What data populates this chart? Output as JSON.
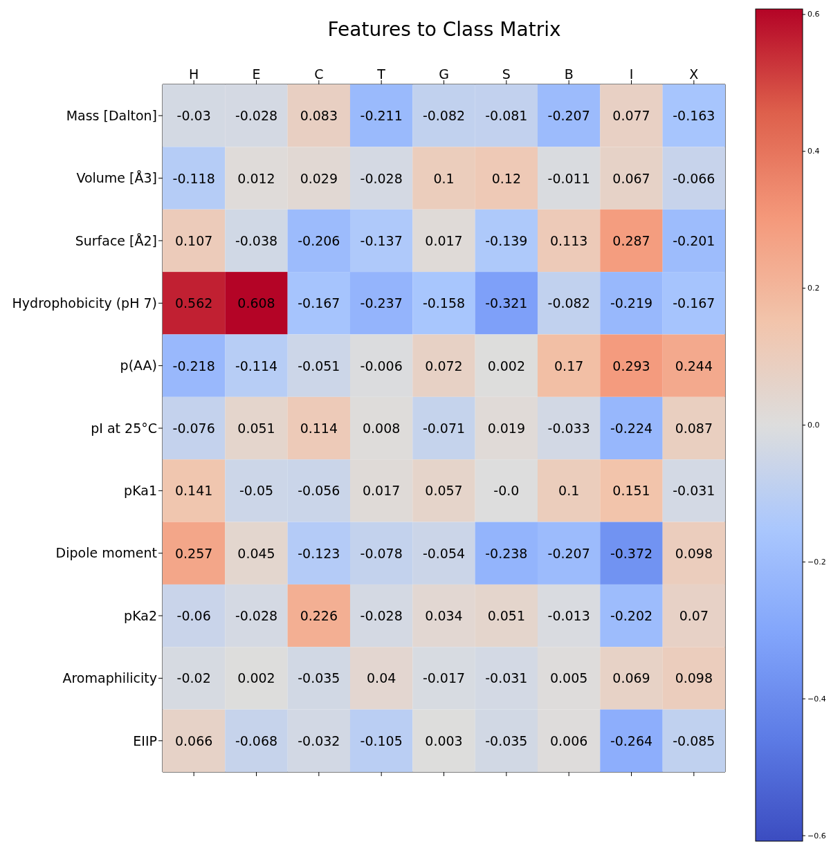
{
  "chart_data": {
    "type": "heatmap",
    "title": "Features to Class Matrix",
    "categories": [
      "H",
      "E",
      "C",
      "T",
      "G",
      "S",
      "B",
      "I",
      "X"
    ],
    "y_categories": [
      "Mass [Dalton]",
      "Volume [Å3]",
      "Surface [Å2]",
      "Hydrophobicity (pH 7)",
      "p(AA)",
      "pI at 25°C",
      "pKa1",
      "Dipole moment",
      "pKa2",
      "Aromaphilicity",
      "EIIP"
    ],
    "cells": [
      [
        -0.03,
        -0.028,
        0.083,
        -0.211,
        -0.082,
        -0.081,
        -0.207,
        0.077,
        -0.163
      ],
      [
        -0.118,
        0.012,
        0.029,
        -0.028,
        0.1,
        0.12,
        -0.011,
        0.067,
        -0.066
      ],
      [
        0.107,
        -0.038,
        -0.206,
        -0.137,
        0.017,
        -0.139,
        0.113,
        0.287,
        -0.201
      ],
      [
        0.562,
        0.608,
        -0.167,
        -0.237,
        -0.158,
        -0.321,
        -0.082,
        -0.219,
        -0.167
      ],
      [
        -0.218,
        -0.114,
        -0.051,
        -0.006,
        0.072,
        0.002,
        0.17,
        0.293,
        0.244
      ],
      [
        -0.076,
        0.051,
        0.114,
        0.008,
        -0.071,
        0.019,
        -0.033,
        -0.224,
        0.087
      ],
      [
        0.141,
        -0.05,
        -0.056,
        0.017,
        0.057,
        0,
        0.1,
        0.151,
        -0.031
      ],
      [
        0.257,
        0.045,
        -0.123,
        -0.078,
        -0.054,
        -0.238,
        -0.207,
        -0.372,
        0.098
      ],
      [
        -0.06,
        -0.028,
        0.226,
        -0.028,
        0.034,
        0.051,
        -0.013,
        -0.202,
        0.07
      ],
      [
        -0.02,
        0.002,
        -0.035,
        0.04,
        -0.017,
        -0.031,
        0.005,
        0.069,
        0.098
      ],
      [
        0.066,
        -0.068,
        -0.032,
        -0.105,
        0.003,
        -0.035,
        0.006,
        -0.264,
        -0.085
      ]
    ],
    "cell_labels": [
      [
        "-0.03",
        "-0.028",
        "0.083",
        "-0.211",
        "-0.082",
        "-0.081",
        "-0.207",
        "0.077",
        "-0.163"
      ],
      [
        "-0.118",
        "0.012",
        "0.029",
        "-0.028",
        "0.1",
        "0.12",
        "-0.011",
        "0.067",
        "-0.066"
      ],
      [
        "0.107",
        "-0.038",
        "-0.206",
        "-0.137",
        "0.017",
        "-0.139",
        "0.113",
        "0.287",
        "-0.201"
      ],
      [
        "0.562",
        "0.608",
        "-0.167",
        "-0.237",
        "-0.158",
        "-0.321",
        "-0.082",
        "-0.219",
        "-0.167"
      ],
      [
        "-0.218",
        "-0.114",
        "-0.051",
        "-0.006",
        "0.072",
        "0.002",
        "0.17",
        "0.293",
        "0.244"
      ],
      [
        "-0.076",
        "0.051",
        "0.114",
        "0.008",
        "-0.071",
        "0.019",
        "-0.033",
        "-0.224",
        "0.087"
      ],
      [
        "0.141",
        "-0.05",
        "-0.056",
        "0.017",
        "0.057",
        "-0.0",
        "0.1",
        "0.151",
        "-0.031"
      ],
      [
        "0.257",
        "0.045",
        "-0.123",
        "-0.078",
        "-0.054",
        "-0.238",
        "-0.207",
        "-0.372",
        "0.098"
      ],
      [
        "-0.06",
        "-0.028",
        "0.226",
        "-0.028",
        "0.034",
        "0.051",
        "-0.013",
        "-0.202",
        "0.07"
      ],
      [
        "-0.02",
        "0.002",
        "-0.035",
        "0.04",
        "-0.017",
        "-0.031",
        "0.005",
        "0.069",
        "0.098"
      ],
      [
        "0.066",
        "-0.068",
        "-0.032",
        "-0.105",
        "0.003",
        "-0.035",
        "0.006",
        "-0.264",
        "-0.085"
      ]
    ],
    "clim": [
      -0.608,
      0.608
    ],
    "cticks": [
      {
        "value": -0.6,
        "label": "−0.6"
      },
      {
        "value": -0.4,
        "label": "−0.4"
      },
      {
        "value": -0.2,
        "label": "−0.2"
      },
      {
        "value": 0,
        "label": "0.0"
      },
      {
        "value": 0.2,
        "label": "0.2"
      },
      {
        "value": 0.4,
        "label": "0.4"
      },
      {
        "value": 0.6,
        "label": "0.6"
      }
    ]
  }
}
